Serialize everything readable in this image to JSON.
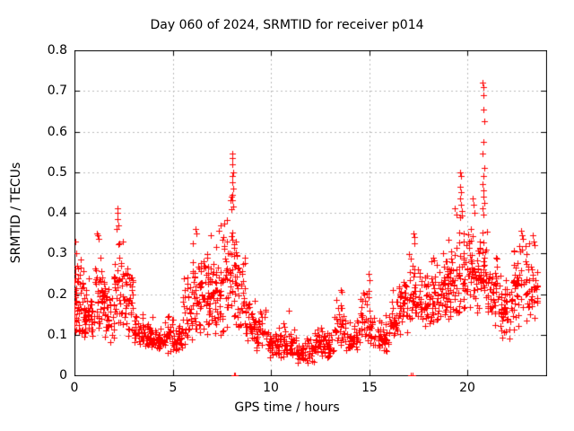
{
  "chart_data": {
    "type": "scatter",
    "title": "Day 060 of 2024, SRMTID for receiver p014",
    "xlabel": "GPS time / hours",
    "ylabel": "SRMTID / TECUs",
    "xlim": [
      0,
      24
    ],
    "ylim": [
      0,
      0.8
    ],
    "xticks": [
      0,
      5,
      10,
      15,
      20
    ],
    "xtick_labels": [
      "0",
      "5",
      "10",
      "15",
      "20"
    ],
    "yticks": [
      0,
      0.1,
      0.2,
      0.3,
      0.4,
      0.5,
      0.6,
      0.7,
      0.8
    ],
    "ytick_labels": [
      "0",
      "0.1",
      "0.2",
      "0.3",
      "0.4",
      "0.5",
      "0.6",
      "0.7",
      "0.8"
    ],
    "grid": {
      "show": true,
      "style": "dotted",
      "color": "#bbbbbb",
      "at_major_ticks": true
    },
    "legend": "none",
    "series": [
      {
        "name": "SRMTID",
        "marker": "plus",
        "color": "#ff0000"
      }
    ],
    "density_bands_format": "[start_hour, end_hour, min_value, max_value, n_points] envelope of the dense scatter band read from the plot",
    "density_bands": [
      [
        0.0,
        0.12,
        0.1,
        0.31,
        12
      ],
      [
        0.0,
        0.5,
        0.08,
        0.32,
        46
      ],
      [
        0.5,
        1.0,
        0.07,
        0.26,
        40
      ],
      [
        1.0,
        1.5,
        0.09,
        0.34,
        40
      ],
      [
        1.5,
        2.0,
        0.08,
        0.24,
        38
      ],
      [
        2.0,
        2.5,
        0.1,
        0.39,
        40
      ],
      [
        2.5,
        3.0,
        0.09,
        0.29,
        36
      ],
      [
        3.0,
        3.5,
        0.07,
        0.17,
        34
      ],
      [
        3.5,
        4.0,
        0.06,
        0.15,
        34
      ],
      [
        4.0,
        4.5,
        0.05,
        0.12,
        32
      ],
      [
        4.5,
        5.0,
        0.05,
        0.16,
        32
      ],
      [
        5.0,
        5.5,
        0.05,
        0.13,
        32
      ],
      [
        5.5,
        6.0,
        0.07,
        0.28,
        36
      ],
      [
        6.0,
        6.5,
        0.09,
        0.34,
        42
      ],
      [
        6.5,
        7.0,
        0.1,
        0.33,
        44
      ],
      [
        7.0,
        7.5,
        0.09,
        0.35,
        42
      ],
      [
        7.5,
        8.0,
        0.1,
        0.42,
        40
      ],
      [
        8.0,
        8.3,
        0.12,
        0.4,
        28
      ],
      [
        8.3,
        8.7,
        0.1,
        0.3,
        30
      ],
      [
        8.7,
        9.2,
        0.07,
        0.2,
        34
      ],
      [
        9.2,
        9.8,
        0.05,
        0.17,
        36
      ],
      [
        9.8,
        10.4,
        0.04,
        0.12,
        36
      ],
      [
        10.4,
        11.2,
        0.04,
        0.13,
        44
      ],
      [
        11.2,
        12.2,
        0.03,
        0.1,
        54
      ],
      [
        12.2,
        12.6,
        0.04,
        0.13,
        26
      ],
      [
        12.6,
        13.2,
        0.04,
        0.11,
        34
      ],
      [
        13.2,
        13.8,
        0.06,
        0.2,
        38
      ],
      [
        13.8,
        14.4,
        0.06,
        0.14,
        36
      ],
      [
        14.4,
        15.2,
        0.07,
        0.22,
        44
      ],
      [
        15.2,
        16.0,
        0.05,
        0.16,
        42
      ],
      [
        16.0,
        16.5,
        0.08,
        0.2,
        32
      ],
      [
        16.5,
        17.0,
        0.1,
        0.26,
        34
      ],
      [
        17.0,
        17.5,
        0.11,
        0.33,
        38
      ],
      [
        17.5,
        18.0,
        0.12,
        0.28,
        36
      ],
      [
        18.0,
        18.5,
        0.12,
        0.3,
        36
      ],
      [
        18.5,
        19.0,
        0.14,
        0.32,
        38
      ],
      [
        19.0,
        19.5,
        0.13,
        0.36,
        38
      ],
      [
        19.5,
        20.0,
        0.15,
        0.42,
        38
      ],
      [
        20.0,
        20.5,
        0.15,
        0.4,
        40
      ],
      [
        20.5,
        21.0,
        0.16,
        0.38,
        44
      ],
      [
        21.0,
        21.5,
        0.12,
        0.33,
        40
      ],
      [
        21.5,
        22.3,
        0.09,
        0.27,
        52
      ],
      [
        22.3,
        23.0,
        0.1,
        0.35,
        46
      ],
      [
        23.0,
        23.55,
        0.12,
        0.33,
        38
      ]
    ],
    "peak_points": [
      [
        0.05,
        0.33
      ],
      [
        0.1,
        0.3
      ],
      [
        1.15,
        0.35
      ],
      [
        1.19,
        0.345
      ],
      [
        1.22,
        0.335
      ],
      [
        2.18,
        0.41
      ],
      [
        2.21,
        0.4
      ],
      [
        2.2,
        0.385
      ],
      [
        2.24,
        0.37
      ],
      [
        2.16,
        0.36
      ],
      [
        6.15,
        0.36
      ],
      [
        6.22,
        0.35
      ],
      [
        6.95,
        0.345
      ],
      [
        7.35,
        0.355
      ],
      [
        7.45,
        0.37
      ],
      [
        7.96,
        0.43
      ],
      [
        7.98,
        0.44
      ],
      [
        8.02,
        0.545
      ],
      [
        8.05,
        0.535
      ],
      [
        8.03,
        0.52
      ],
      [
        8.06,
        0.5
      ],
      [
        8.04,
        0.49
      ],
      [
        8.02,
        0.475
      ],
      [
        8.07,
        0.46
      ],
      [
        8.05,
        0.445
      ],
      [
        8.03,
        0.43
      ],
      [
        8.08,
        0.415
      ],
      [
        10.9,
        0.16
      ],
      [
        13.55,
        0.21
      ],
      [
        13.6,
        0.205
      ],
      [
        14.95,
        0.25
      ],
      [
        15.0,
        0.235
      ],
      [
        16.2,
        0.21
      ],
      [
        17.25,
        0.35
      ],
      [
        17.3,
        0.34
      ],
      [
        17.28,
        0.325
      ],
      [
        19.35,
        0.41
      ],
      [
        19.42,
        0.395
      ],
      [
        19.62,
        0.5
      ],
      [
        19.66,
        0.49
      ],
      [
        19.64,
        0.465
      ],
      [
        19.68,
        0.45
      ],
      [
        19.6,
        0.435
      ],
      [
        19.65,
        0.42
      ],
      [
        19.7,
        0.405
      ],
      [
        19.63,
        0.39
      ],
      [
        20.25,
        0.435
      ],
      [
        20.3,
        0.42
      ],
      [
        20.35,
        0.4
      ],
      [
        20.78,
        0.72
      ],
      [
        20.82,
        0.71
      ],
      [
        20.8,
        0.69
      ],
      [
        20.79,
        0.655
      ],
      [
        20.83,
        0.625
      ],
      [
        20.81,
        0.575
      ],
      [
        20.78,
        0.545
      ],
      [
        20.84,
        0.51
      ],
      [
        20.8,
        0.49
      ],
      [
        20.76,
        0.47
      ],
      [
        20.82,
        0.455
      ],
      [
        20.79,
        0.44
      ],
      [
        20.85,
        0.425
      ],
      [
        20.77,
        0.41
      ],
      [
        20.81,
        0.395
      ],
      [
        22.7,
        0.355
      ],
      [
        22.75,
        0.345
      ],
      [
        22.8,
        0.335
      ],
      [
        23.3,
        0.345
      ],
      [
        23.35,
        0.33
      ],
      [
        23.4,
        0.32
      ]
    ],
    "zero_points": [
      [
        8.12,
        0.0
      ],
      [
        8.16,
        0.0
      ],
      [
        17.12,
        0.0
      ],
      [
        17.18,
        0.0
      ]
    ]
  },
  "colors": {
    "marker": "#ff0000",
    "grid": "#bbbbbb",
    "axis": "#000000",
    "background": "#ffffff",
    "text": "#000000"
  }
}
